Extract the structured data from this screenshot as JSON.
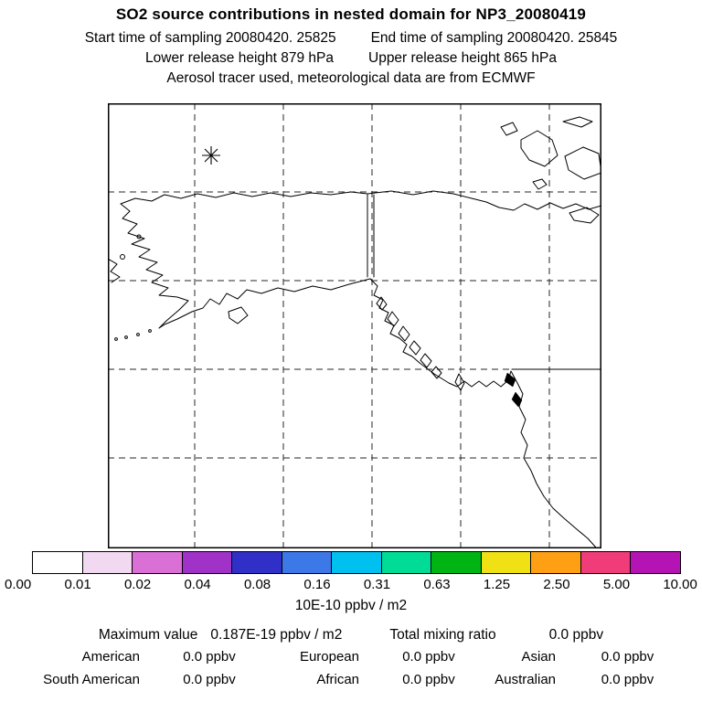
{
  "header": {
    "title": "SO2 source contributions in nested domain for NP3_20080419",
    "start_time": "Start time of sampling 20080420. 25825",
    "end_time": "End time of sampling 20080420. 25845",
    "lower_release_height": "Lower release height  879 hPa",
    "upper_release_height": "Upper release height  865 hPa",
    "tracer_line": "Aerosol tracer used, meteorological data are from ECMWF"
  },
  "colorbar": {
    "cells": [
      "#ffffff",
      "#f1d9f1",
      "#da70d6",
      "#a032c8",
      "#3030c8",
      "#3c78e8",
      "#00c0f0",
      "#00dc96",
      "#00b414",
      "#f0e114",
      "#ffa014",
      "#f03c78",
      "#b414b4"
    ],
    "tick_labels": [
      "0.00",
      "0.01",
      "0.02",
      "0.04",
      "0.08",
      "0.16",
      "0.31",
      "0.63",
      "1.25",
      "2.50",
      "5.00",
      "10.00"
    ],
    "units_label": "10E-10 ppbv / m2"
  },
  "stats": {
    "max_label": "Maximum value",
    "max_value": "0.187E-19 ppbv / m2",
    "tmr_label": "Total mixing ratio",
    "tmr_value": "0.0 ppbv",
    "regions": [
      {
        "label": "American",
        "value": "0.0 ppbv"
      },
      {
        "label": "European",
        "value": "0.0 ppbv"
      },
      {
        "label": "Asian",
        "value": "0.0 ppbv"
      },
      {
        "label": "South American",
        "value": "0.0 ppbv"
      },
      {
        "label": "African",
        "value": "0.0 ppbv"
      },
      {
        "label": "Australian",
        "value": "0.0 ppbv"
      }
    ]
  },
  "chart_data": {
    "type": "heatmap",
    "title": "SO2 source contributions in nested domain for NP3_20080419",
    "subtitle": [
      "Start time of sampling 20080420. 25825",
      "End time of sampling 20080420. 25845",
      "Lower release height 879 hPa",
      "Upper release height 865 hPa",
      "Aerosol tracer used, meteorological data are from ECMWF"
    ],
    "map_region": "Alaska, Bering Sea and western North America coastline with lat/lon grid",
    "field_values_visible": "none above lowest contour (map area effectively empty)",
    "marker": {
      "symbol": "asterisk",
      "meaning": "sampling/release location on map"
    },
    "colorbar_levels": [
      0.0,
      0.01,
      0.02,
      0.04,
      0.08,
      0.16,
      0.31,
      0.63,
      1.25,
      2.5,
      5.0,
      10.0
    ],
    "colorbar_units": "10E-10 ppbv / m2",
    "maximum_value": "0.187E-19 ppbv / m2",
    "total_mixing_ratio_ppbv": 0.0,
    "region_contributions_ppbv": {
      "American": 0.0,
      "European": 0.0,
      "Asian": 0.0,
      "South American": 0.0,
      "African": 0.0,
      "Australian": 0.0
    },
    "legend_position": "bottom",
    "grid": true
  }
}
